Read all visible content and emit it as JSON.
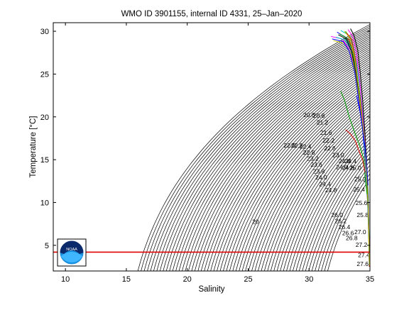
{
  "chart_data": {
    "type": "line",
    "title": "WMO ID 3901155, internal ID 4331, 25–Jan–2020",
    "xlabel": "Salinity",
    "ylabel": "Temperature [°C]",
    "xlim": [
      9,
      35
    ],
    "ylim": [
      2,
      31
    ],
    "xticks": [
      "10",
      "15",
      "20",
      "25",
      "30",
      "35"
    ],
    "yticks": [
      "5",
      "10",
      "15",
      "20",
      "25",
      "30"
    ],
    "grid": false,
    "logo": "NOAA",
    "logo_icon": "noaa-logo-icon",
    "hline": {
      "y": 4.2,
      "color": "#e00000"
    },
    "density_contours": {
      "sigma_min": 14,
      "sigma_max": 26,
      "step": 0.2,
      "color": "#000000"
    },
    "contour_labels": [
      {
        "text": "20",
        "x": 25.6,
        "y": 7.5
      },
      {
        "text": "20.6",
        "x": 30.0,
        "y": 20.0
      },
      {
        "text": "20.8",
        "x": 30.8,
        "y": 19.9
      },
      {
        "text": "21.2",
        "x": 31.1,
        "y": 19.1
      },
      {
        "text": "21.6",
        "x": 31.4,
        "y": 17.9
      },
      {
        "text": "22.2",
        "x": 31.6,
        "y": 17.0
      },
      {
        "text": "22.6",
        "x": 31.7,
        "y": 16.1
      },
      {
        "text": "22.0",
        "x": 28.4,
        "y": 16.4
      },
      {
        "text": "22.2",
        "x": 29.0,
        "y": 16.4
      },
      {
        "text": "22.4",
        "x": 29.7,
        "y": 16.3
      },
      {
        "text": "22.8",
        "x": 30.0,
        "y": 15.6
      },
      {
        "text": "23.2",
        "x": 30.3,
        "y": 14.9
      },
      {
        "text": "23.6",
        "x": 30.6,
        "y": 14.2
      },
      {
        "text": "23.8",
        "x": 30.8,
        "y": 13.4
      },
      {
        "text": "24.0",
        "x": 31.0,
        "y": 12.7
      },
      {
        "text": "24.4",
        "x": 31.3,
        "y": 11.9
      },
      {
        "text": "24.8",
        "x": 31.8,
        "y": 11.2
      },
      {
        "text": "23.0",
        "x": 32.4,
        "y": 15.3
      },
      {
        "text": "24.6",
        "x": 32.9,
        "y": 14.6
      },
      {
        "text": "24.4",
        "x": 33.4,
        "y": 14.6
      },
      {
        "text": "24.0",
        "x": 32.7,
        "y": 13.9
      },
      {
        "text": "24.8",
        "x": 33.2,
        "y": 13.8
      },
      {
        "text": "25.0",
        "x": 33.8,
        "y": 13.8
      },
      {
        "text": "25.2",
        "x": 34.2,
        "y": 12.5
      },
      {
        "text": "25.4",
        "x": 34.1,
        "y": 11.3
      },
      {
        "text": "25.6",
        "x": 34.3,
        "y": 9.7
      },
      {
        "text": "25.8",
        "x": 34.4,
        "y": 8.3
      },
      {
        "text": "26.0",
        "x": 32.3,
        "y": 8.3
      },
      {
        "text": "26.2",
        "x": 32.6,
        "y": 7.6
      },
      {
        "text": "26.4",
        "x": 32.9,
        "y": 6.9
      },
      {
        "text": "26.6",
        "x": 33.2,
        "y": 6.2
      },
      {
        "text": "26.8",
        "x": 33.5,
        "y": 5.6
      },
      {
        "text": "27.0",
        "x": 34.2,
        "y": 6.3
      },
      {
        "text": "27.2",
        "x": 34.3,
        "y": 4.8
      },
      {
        "text": "27.4",
        "x": 34.5,
        "y": 3.6
      },
      {
        "text": "27.6",
        "x": 34.4,
        "y": 2.6
      }
    ],
    "series": [
      {
        "color": "#e00000",
        "values": [
          [
            32.8,
            29.5
          ],
          [
            33.3,
            29.0
          ],
          [
            33.6,
            27.5
          ],
          [
            33.9,
            25.0
          ],
          [
            34.2,
            22.0
          ],
          [
            34.5,
            18.5
          ],
          [
            34.7,
            14.5
          ],
          [
            34.85,
            10.0
          ],
          [
            34.9,
            6.0
          ],
          [
            34.95,
            2.5
          ]
        ]
      },
      {
        "color": "#0000ff",
        "values": [
          [
            32.3,
            29.9
          ],
          [
            33.0,
            29.3
          ],
          [
            33.4,
            28.0
          ],
          [
            33.8,
            25.5
          ],
          [
            34.1,
            22.5
          ],
          [
            34.4,
            19.0
          ],
          [
            34.6,
            15.0
          ],
          [
            34.8,
            10.5
          ],
          [
            34.9,
            6.5
          ],
          [
            34.95,
            2.6
          ]
        ]
      },
      {
        "color": "#00a000",
        "values": [
          [
            33.0,
            30.0
          ],
          [
            33.4,
            29.0
          ],
          [
            33.7,
            27.0
          ],
          [
            34.0,
            24.0
          ],
          [
            34.3,
            21.0
          ],
          [
            34.6,
            17.5
          ],
          [
            34.75,
            13.5
          ],
          [
            34.85,
            9.5
          ],
          [
            34.92,
            5.5
          ],
          [
            34.97,
            2.7
          ]
        ]
      },
      {
        "color": "#ff00ff",
        "values": [
          [
            31.8,
            29.4
          ],
          [
            32.7,
            29.1
          ],
          [
            33.2,
            28.2
          ],
          [
            33.7,
            26.0
          ],
          [
            34.0,
            23.0
          ],
          [
            34.35,
            19.5
          ],
          [
            34.6,
            15.5
          ],
          [
            34.8,
            11.0
          ],
          [
            34.9,
            7.0
          ],
          [
            34.95,
            2.8
          ]
        ]
      },
      {
        "color": "#00c8c8",
        "values": [
          [
            32.6,
            30.1
          ],
          [
            33.2,
            29.6
          ],
          [
            33.6,
            28.4
          ],
          [
            33.95,
            25.8
          ],
          [
            34.25,
            22.8
          ],
          [
            34.5,
            19.2
          ],
          [
            34.7,
            15.2
          ],
          [
            34.85,
            11.0
          ],
          [
            34.92,
            6.8
          ],
          [
            34.96,
            2.9
          ]
        ]
      },
      {
        "color": "#000000",
        "values": [
          [
            33.4,
            30.3
          ],
          [
            33.7,
            29.5
          ],
          [
            34.0,
            27.8
          ],
          [
            34.2,
            25.2
          ],
          [
            34.4,
            22.0
          ],
          [
            34.6,
            18.0
          ],
          [
            34.75,
            14.0
          ],
          [
            34.87,
            9.8
          ],
          [
            34.93,
            5.8
          ],
          [
            34.97,
            3.0
          ]
        ]
      },
      {
        "color": "#c8c800",
        "values": [
          [
            32.0,
            28.9
          ],
          [
            32.9,
            28.6
          ],
          [
            33.5,
            27.3
          ],
          [
            33.85,
            24.6
          ],
          [
            34.15,
            21.5
          ],
          [
            34.45,
            17.8
          ],
          [
            34.65,
            13.8
          ],
          [
            34.82,
            9.6
          ],
          [
            34.9,
            5.6
          ],
          [
            34.95,
            2.7
          ]
        ]
      },
      {
        "color": "#e00000",
        "values": [
          [
            33.1,
            29.8
          ],
          [
            33.5,
            29.0
          ],
          [
            33.8,
            26.8
          ],
          [
            34.05,
            23.6
          ],
          [
            34.3,
            20.2
          ],
          [
            34.55,
            16.6
          ],
          [
            34.72,
            12.8
          ],
          [
            34.86,
            8.8
          ],
          [
            34.93,
            5.0
          ],
          [
            34.97,
            2.6
          ]
        ]
      },
      {
        "color": "#0000ff",
        "values": [
          [
            31.9,
            29.1
          ],
          [
            32.8,
            28.8
          ],
          [
            33.3,
            27.7
          ],
          [
            33.75,
            25.2
          ],
          [
            34.05,
            22.2
          ],
          [
            34.4,
            18.6
          ],
          [
            34.62,
            14.6
          ],
          [
            34.8,
            10.2
          ],
          [
            34.9,
            6.2
          ],
          [
            34.95,
            2.8
          ]
        ]
      },
      {
        "color": "#00a000",
        "values": [
          [
            32.5,
            29.7
          ],
          [
            33.1,
            29.2
          ],
          [
            33.55,
            27.9
          ],
          [
            33.9,
            25.3
          ],
          [
            34.2,
            22.3
          ],
          [
            34.48,
            18.8
          ],
          [
            34.68,
            14.8
          ],
          [
            34.84,
            10.4
          ],
          [
            34.91,
            6.4
          ],
          [
            34.96,
            2.9
          ]
        ]
      },
      {
        "color": "#ff00ff",
        "values": [
          [
            33.2,
            30.2
          ],
          [
            33.6,
            29.4
          ],
          [
            33.9,
            27.4
          ],
          [
            34.15,
            24.3
          ],
          [
            34.35,
            21.0
          ],
          [
            34.58,
            17.2
          ],
          [
            34.74,
            13.2
          ],
          [
            34.86,
            9.2
          ],
          [
            34.93,
            5.3
          ],
          [
            34.97,
            2.6
          ]
        ]
      },
      {
        "color": "#00c8c8",
        "values": [
          [
            32.2,
            29.3
          ],
          [
            32.95,
            29.0
          ],
          [
            33.45,
            27.8
          ],
          [
            33.85,
            25.4
          ],
          [
            34.15,
            22.4
          ],
          [
            34.42,
            18.9
          ],
          [
            34.64,
            14.9
          ],
          [
            34.81,
            10.5
          ],
          [
            34.9,
            6.5
          ],
          [
            34.95,
            2.8
          ]
        ]
      },
      {
        "color": "#000000",
        "values": [
          [
            32.4,
            29.6
          ],
          [
            33.05,
            29.1
          ],
          [
            33.5,
            27.6
          ],
          [
            33.88,
            24.9
          ],
          [
            34.2,
            21.8
          ],
          [
            34.5,
            18.2
          ],
          [
            34.7,
            14.2
          ],
          [
            34.84,
            10.0
          ],
          [
            34.91,
            6.0
          ],
          [
            34.96,
            2.7
          ]
        ]
      },
      {
        "color": "#c8c800",
        "values": [
          [
            32.9,
            30.0
          ],
          [
            33.35,
            29.2
          ],
          [
            33.7,
            27.2
          ],
          [
            34.0,
            24.2
          ],
          [
            34.28,
            20.9
          ],
          [
            34.55,
            17.3
          ],
          [
            34.72,
            13.3
          ],
          [
            34.85,
            9.3
          ],
          [
            34.92,
            5.4
          ],
          [
            34.96,
            2.6
          ]
        ]
      },
      {
        "color": "#00a000",
        "values": [
          [
            32.6,
            23.0
          ],
          [
            32.9,
            22.0
          ],
          [
            33.3,
            20.0
          ],
          [
            33.8,
            18.0
          ],
          [
            34.2,
            16.5
          ],
          [
            34.5,
            15.0
          ],
          [
            34.6,
            13.0
          ],
          [
            34.75,
            11.0
          ]
        ]
      },
      {
        "color": "#e00000",
        "values": [
          [
            33.0,
            18.5
          ],
          [
            33.4,
            18.0
          ],
          [
            33.8,
            17.2
          ],
          [
            34.1,
            16.0
          ],
          [
            34.4,
            15.0
          ],
          [
            34.6,
            13.5
          ]
        ]
      },
      {
        "color": "#0000ff",
        "values": [
          [
            33.9,
            22.5
          ],
          [
            34.2,
            20.5
          ],
          [
            34.4,
            18.5
          ],
          [
            34.6,
            16.5
          ],
          [
            34.75,
            14.0
          ],
          [
            34.85,
            12.0
          ]
        ]
      }
    ]
  }
}
